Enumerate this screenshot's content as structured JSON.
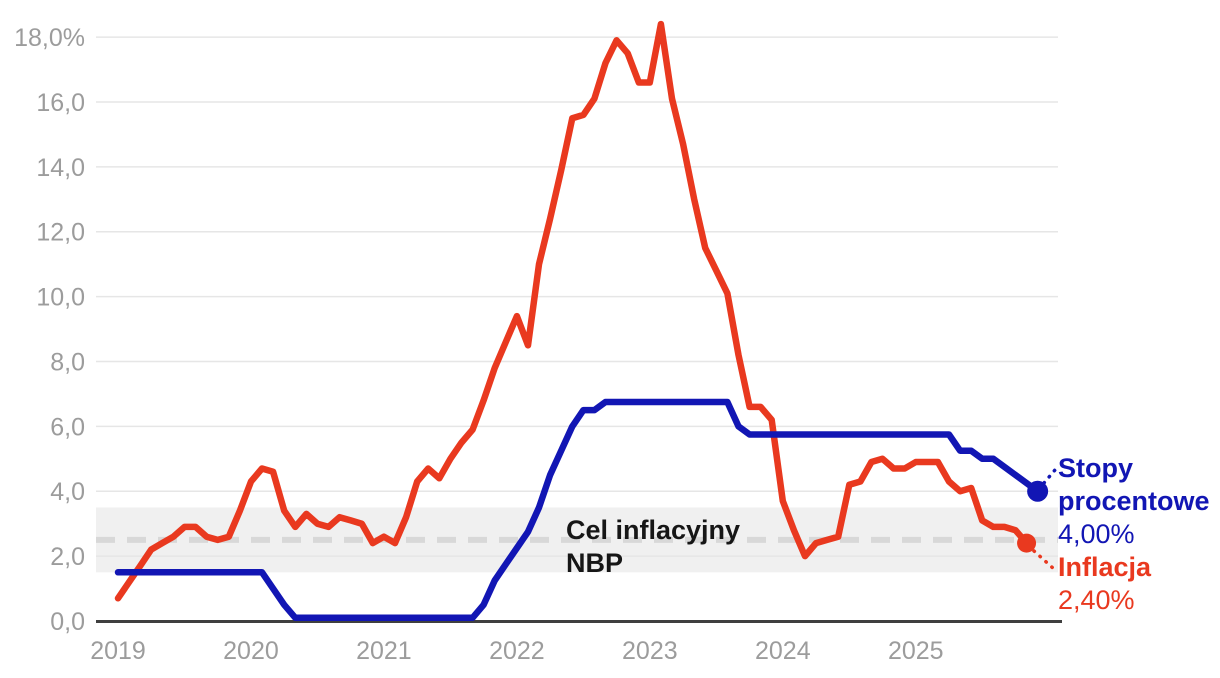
{
  "chart_data": {
    "type": "line",
    "title": "",
    "x_start": "2019-01",
    "x_frequency": "monthly",
    "x_tick_labels": [
      "2019",
      "2020",
      "2021",
      "2022",
      "2023",
      "2024",
      "2025"
    ],
    "y_tick_values": [
      0,
      2,
      4,
      6,
      8,
      10,
      12,
      14,
      16,
      18
    ],
    "y_tick_labels": [
      "0,0",
      "2,0",
      "4,0",
      "6,0",
      "8,0",
      "10,0",
      "12,0",
      "14,0",
      "16,0",
      "18,0%"
    ],
    "ylim": [
      0,
      18.5
    ],
    "grid": true,
    "legend_position": "right-end-labels",
    "target_band": {
      "label": "Cel inflacyjny NBP",
      "from": 1.5,
      "to": 3.5,
      "center": 2.5,
      "band_color": "#f0f0f0",
      "center_line_color": "#d8d8d8"
    },
    "series": [
      {
        "name": "Inflacja",
        "color": "#e9391f",
        "end_value_label": "2,40%",
        "values": [
          0.7,
          1.2,
          1.7,
          2.2,
          2.4,
          2.6,
          2.9,
          2.9,
          2.6,
          2.5,
          2.6,
          3.4,
          4.3,
          4.7,
          4.6,
          3.4,
          2.9,
          3.3,
          3.0,
          2.9,
          3.2,
          3.1,
          3.0,
          2.4,
          2.6,
          2.4,
          3.2,
          4.3,
          4.7,
          4.4,
          5.0,
          5.5,
          5.9,
          6.8,
          7.8,
          8.6,
          9.4,
          8.5,
          11.0,
          12.4,
          13.9,
          15.5,
          15.6,
          16.1,
          17.2,
          17.9,
          17.5,
          16.6,
          16.6,
          18.4,
          16.1,
          14.7,
          13.0,
          11.5,
          10.8,
          10.1,
          8.2,
          6.6,
          6.6,
          6.2,
          3.7,
          2.8,
          2.0,
          2.4,
          2.5,
          2.6,
          4.2,
          4.3,
          4.9,
          5.0,
          4.7,
          4.7,
          4.9,
          4.9,
          4.9,
          4.3,
          4.0,
          4.1,
          3.1,
          2.9,
          2.9,
          2.8,
          2.4
        ]
      },
      {
        "name": "Stopy procentowe",
        "color": "#1216b4",
        "end_value_label": "4,00%",
        "values": [
          1.5,
          1.5,
          1.5,
          1.5,
          1.5,
          1.5,
          1.5,
          1.5,
          1.5,
          1.5,
          1.5,
          1.5,
          1.5,
          1.5,
          1.0,
          0.5,
          0.1,
          0.1,
          0.1,
          0.1,
          0.1,
          0.1,
          0.1,
          0.1,
          0.1,
          0.1,
          0.1,
          0.1,
          0.1,
          0.1,
          0.1,
          0.1,
          0.1,
          0.5,
          1.25,
          1.75,
          2.25,
          2.75,
          3.5,
          4.5,
          5.25,
          6.0,
          6.5,
          6.5,
          6.75,
          6.75,
          6.75,
          6.75,
          6.75,
          6.75,
          6.75,
          6.75,
          6.75,
          6.75,
          6.75,
          6.75,
          6.0,
          5.75,
          5.75,
          5.75,
          5.75,
          5.75,
          5.75,
          5.75,
          5.75,
          5.75,
          5.75,
          5.75,
          5.75,
          5.75,
          5.75,
          5.75,
          5.75,
          5.75,
          5.75,
          5.75,
          5.25,
          5.25,
          5.0,
          5.0,
          4.75,
          4.5,
          4.25,
          4.0
        ]
      }
    ]
  },
  "annotations": {
    "band_label": "Cel inflacyjny NBP",
    "rate_label": "Stopy procentowe",
    "rate_value": "4,00%",
    "inflation_label": "Inflacja",
    "inflation_value": "2,40%"
  },
  "colors": {
    "inflation": "#e9391f",
    "rates": "#1216b4",
    "grid": "#e6e6e6",
    "axis": "#3f3f3f",
    "tick_text": "#9c9c9c",
    "band": "#f0f0f0",
    "band_center_dash": "#d8d8d8",
    "background": "#ffffff"
  }
}
